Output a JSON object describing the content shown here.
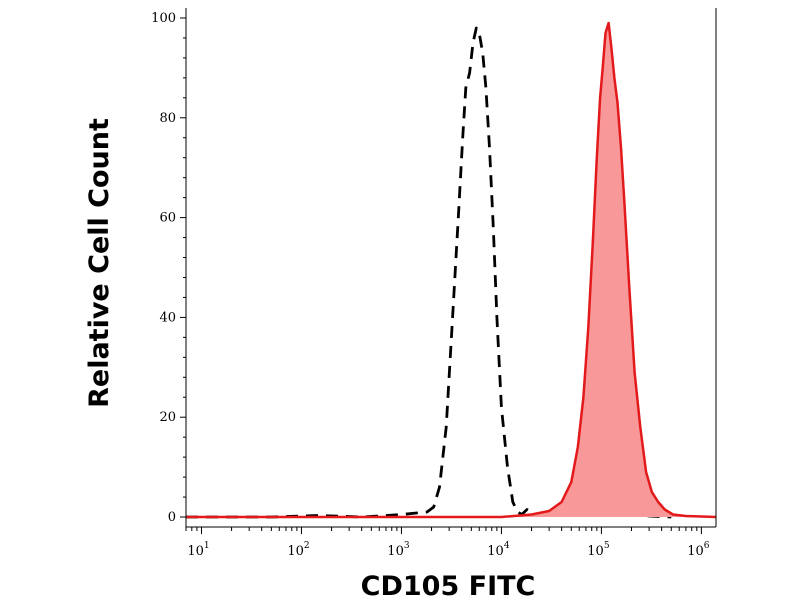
{
  "chart_data": {
    "type": "area",
    "xlabel": "CD105 FITC",
    "ylabel": "Relative Cell Count",
    "xscale": "log",
    "xlim": [
      7,
      1400000
    ],
    "ylim": [
      -2,
      102
    ],
    "x_tick_labels": [
      {
        "value": 10,
        "base": "10",
        "exp": "1"
      },
      {
        "value": 100,
        "base": "10",
        "exp": "2"
      },
      {
        "value": 1000,
        "base": "10",
        "exp": "3"
      },
      {
        "value": 10000,
        "base": "10",
        "exp": "4"
      },
      {
        "value": 100000,
        "base": "10",
        "exp": "5"
      },
      {
        "value": 1000000,
        "base": "10",
        "exp": "6"
      }
    ],
    "y_tick_labels": [
      "0",
      "20",
      "40",
      "60",
      "80",
      "100"
    ],
    "y_ticks": [
      0,
      20,
      40,
      60,
      80,
      100
    ],
    "grid": false,
    "legend": "none",
    "series": [
      {
        "style": "dashed",
        "color": "#000000",
        "fill": "none",
        "x": [
          7,
          20,
          50,
          150,
          400,
          1000,
          1800,
          2100,
          2400,
          2800,
          3200,
          3700,
          4100,
          4400,
          4800,
          5200,
          5600,
          6000,
          6500,
          7000,
          7600,
          8300,
          9000,
          10000,
          11500,
          13000,
          14500,
          16000,
          18000,
          22000,
          30000,
          50000,
          70000,
          90000,
          110000,
          130000,
          160000,
          200000,
          300000,
          500000
        ],
        "values": [
          0,
          0,
          0,
          0.3,
          0,
          0.5,
          1,
          2,
          6,
          18,
          38,
          60,
          76,
          86,
          89,
          95,
          98,
          97,
          93,
          86,
          74,
          58,
          40,
          22,
          10,
          3,
          1,
          0.5,
          1.5,
          0.5,
          0.8,
          0.5,
          1.2,
          0.4,
          1.8,
          0.6,
          1.2,
          0.4,
          0.2,
          0
        ]
      },
      {
        "style": "solid",
        "color": "#e31a1c",
        "fill": "#f89898",
        "x": [
          7,
          100,
          1000,
          10000,
          20000,
          30000,
          40000,
          50000,
          58000,
          66000,
          74000,
          82000,
          90000,
          97000,
          103000,
          110000,
          118000,
          126000,
          135000,
          145000,
          157000,
          170000,
          190000,
          215000,
          245000,
          280000,
          320000,
          370000,
          430000,
          520000,
          700000,
          1000000,
          1400000
        ],
        "values": [
          0,
          0,
          0,
          0,
          0.5,
          1.2,
          3,
          7,
          14,
          24,
          38,
          55,
          72,
          84,
          90,
          97,
          99,
          94,
          88,
          83,
          74,
          63,
          46,
          29,
          18,
          9,
          5,
          3,
          1.5,
          0.5,
          0.2,
          0.1,
          0
        ]
      }
    ]
  }
}
